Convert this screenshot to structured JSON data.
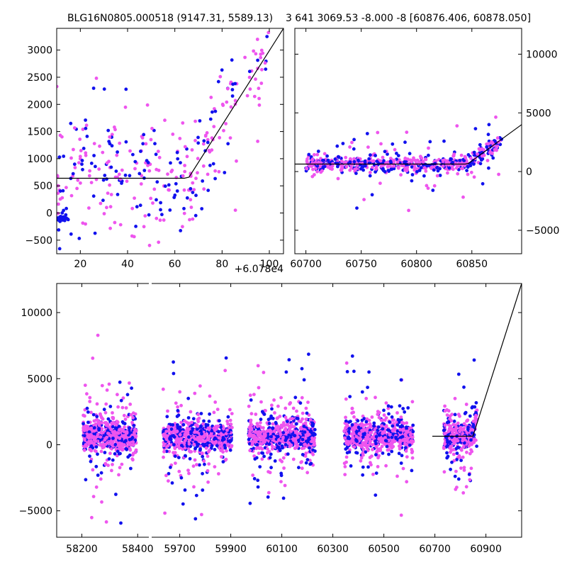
{
  "chart_data": [
    {
      "type": "scatter",
      "panel": "top-left",
      "title": "BLG16N0805.000518 (9147.31, 5589.13)",
      "offset_label": "+6.078e4",
      "x_ticks": [
        "20",
        "40",
        "60",
        "80",
        "100"
      ],
      "y_ticks": [
        "−500",
        "0",
        "500",
        "1000",
        "1500",
        "2000",
        "2500",
        "3000"
      ],
      "xlim": [
        10,
        106
      ],
      "ylim": [
        -750,
        3400
      ],
      "series": [
        {
          "name": "magenta",
          "color": "#ee55ee"
        },
        {
          "name": "blue",
          "color": "#1111ee"
        }
      ],
      "model": {
        "color": "#000000",
        "x": [
          10,
          64,
          66,
          106
        ],
        "y": [
          640,
          640,
          660,
          3400
        ]
      }
    },
    {
      "type": "scatter",
      "panel": "top-right",
      "title": "3 641 3069.53 -8.000 -8 [60876.406, 60878.050]",
      "x_ticks": [
        "60700",
        "60750",
        "60800",
        "60850"
      ],
      "y_ticks": [
        "−5000",
        "0",
        "5000",
        "10000"
      ],
      "xlim": [
        60690,
        60895
      ],
      "ylim": [
        -7000,
        12200
      ],
      "series": [
        {
          "name": "magenta",
          "color": "#ee55ee"
        },
        {
          "name": "blue",
          "color": "#1111ee"
        }
      ],
      "model": {
        "color": "#000000",
        "x": [
          60690,
          60844,
          60847,
          60895
        ],
        "y": [
          640,
          640,
          700,
          4000
        ]
      }
    },
    {
      "type": "scatter",
      "panel": "bottom",
      "x_ticks": [
        "58200",
        "58400",
        "59700",
        "59900",
        "60100",
        "60300",
        "60500",
        "60700",
        "60900"
      ],
      "y_ticks": [
        "−5000",
        "0",
        "5000",
        "10000"
      ],
      "xlim_segment1": [
        58110,
        58440
      ],
      "xlim_segment2": [
        59590,
        61040
      ],
      "ylim": [
        -7000,
        12200
      ],
      "series": [
        {
          "name": "magenta",
          "color": "#ee55ee"
        },
        {
          "name": "blue",
          "color": "#1111ee"
        }
      ],
      "model": {
        "color": "#000000",
        "x": [
          60690,
          60848,
          60850,
          61040
        ],
        "y": [
          640,
          640,
          700,
          12200
        ]
      },
      "seasons": [
        {
          "center": 58300,
          "halfwidth": 95
        },
        {
          "center": 59770,
          "halfwidth": 135
        },
        {
          "center": 60100,
          "halfwidth": 130
        },
        {
          "center": 60480,
          "halfwidth": 135
        },
        {
          "center": 60800,
          "halfwidth": 65
        }
      ]
    }
  ]
}
